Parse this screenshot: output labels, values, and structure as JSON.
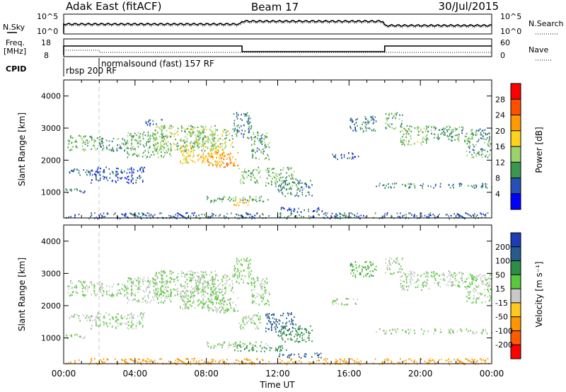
{
  "header": {
    "station": "Adak East (fitACF)",
    "beam": "Beam 17",
    "date": "30/Jul/2015"
  },
  "top_panels": {
    "nsky_label": "N.Sky",
    "nsearch_label": "N.Search",
    "count_ticks": [
      "10^5",
      "10^0"
    ],
    "freq_label_1": "Freq.",
    "freq_label_2": "[MHz]",
    "freq_ticks": [
      "18",
      "8"
    ],
    "nave_label": "Nave",
    "nave_ticks": [
      "60",
      "0"
    ],
    "cpid_label": "CPID",
    "cpid_entries": [
      {
        "time": "00:00",
        "name": "rbsp 200 RF"
      },
      {
        "time": "02:00",
        "name": "normalsound (fast) 157 RF"
      }
    ]
  },
  "colorbars": {
    "power": {
      "label": "Power [dB]",
      "ticks": [
        "28",
        "24",
        "20",
        "16",
        "12",
        "8",
        "4"
      ],
      "colors": [
        "#ff0000",
        "#ff5000",
        "#ff9a00",
        "#ffd21e",
        "#9bd26e",
        "#3c9650",
        "#2850b4",
        "#0000ff"
      ]
    },
    "velocity": {
      "label": "Velocity [m s⁻¹]",
      "ticks": [
        "200",
        "100",
        "50",
        "15",
        "-15",
        "-50",
        "-100",
        "-200"
      ],
      "colors": [
        "#1e3cb4",
        "#285a8c",
        "#2d8c46",
        "#5ac83c",
        "#c8c8c8",
        "#ffc81e",
        "#ff9600",
        "#ff5a00",
        "#ff0000"
      ]
    }
  },
  "x_axis": {
    "label": "Time UT",
    "ticks": [
      "00:00",
      "04:00",
      "08:00",
      "12:00",
      "16:00",
      "20:00",
      "00:00"
    ]
  },
  "chart_data": [
    {
      "type": "heatmap",
      "name": "power",
      "xlabel": "Time UT",
      "ylabel": "Slant Range [km]",
      "xlim": [
        0,
        24
      ],
      "ylim": [
        200,
        4500
      ],
      "yticks": [
        "1000",
        "2000",
        "3000",
        "4000"
      ],
      "colorbar": "Power [dB]",
      "crange": [
        0,
        32
      ],
      "regions": [
        {
          "t0": 0.2,
          "t1": 2.2,
          "r0": 2300,
          "r1": 2800,
          "level": 12
        },
        {
          "t0": 0.0,
          "t1": 1.2,
          "r0": 1000,
          "r1": 1150,
          "level": 8
        },
        {
          "t0": 0.3,
          "t1": 2.0,
          "r0": 1550,
          "r1": 1750,
          "level": 8
        },
        {
          "t0": 1.5,
          "t1": 4.5,
          "r0": 1300,
          "r1": 1800,
          "level": 6
        },
        {
          "t0": 2.0,
          "t1": 3.5,
          "r0": 2300,
          "r1": 2700,
          "level": 10
        },
        {
          "t0": 3.5,
          "t1": 6.0,
          "r0": 2100,
          "r1": 2900,
          "level": 12
        },
        {
          "t0": 5.0,
          "t1": 8.5,
          "r0": 2300,
          "r1": 3100,
          "level": 13
        },
        {
          "t0": 6.5,
          "t1": 9.0,
          "r0": 1900,
          "r1": 2500,
          "level": 18
        },
        {
          "t0": 8.0,
          "t1": 9.8,
          "r0": 1800,
          "r1": 2300,
          "level": 22
        },
        {
          "t0": 7.0,
          "t1": 9.5,
          "r0": 2400,
          "r1": 3000,
          "level": 14
        },
        {
          "t0": 4.5,
          "t1": 5.5,
          "r0": 3100,
          "r1": 3300,
          "level": 6
        },
        {
          "t0": 9.5,
          "t1": 10.5,
          "r0": 2700,
          "r1": 3500,
          "level": 8
        },
        {
          "t0": 10.5,
          "t1": 11.5,
          "r0": 2000,
          "r1": 2900,
          "level": 10
        },
        {
          "t0": 9.8,
          "t1": 11.0,
          "r0": 1300,
          "r1": 1800,
          "level": 12
        },
        {
          "t0": 11.3,
          "t1": 13.0,
          "r0": 1200,
          "r1": 1800,
          "level": 12
        },
        {
          "t0": 12.0,
          "t1": 14.0,
          "r0": 900,
          "r1": 1400,
          "level": 9
        },
        {
          "t0": 8.0,
          "t1": 11.5,
          "r0": 700,
          "r1": 900,
          "level": 11
        },
        {
          "t0": 9.5,
          "t1": 10.5,
          "r0": 600,
          "r1": 800,
          "level": 20
        },
        {
          "t0": 12.0,
          "t1": 14.5,
          "r0": 400,
          "r1": 550,
          "level": 6
        },
        {
          "t0": 16.0,
          "t1": 17.5,
          "r0": 2900,
          "r1": 3400,
          "level": 8
        },
        {
          "t0": 15.0,
          "t1": 16.5,
          "r0": 2050,
          "r1": 2250,
          "level": 7
        },
        {
          "t0": 18.0,
          "t1": 19.0,
          "r0": 3000,
          "r1": 3500,
          "level": 11
        },
        {
          "t0": 18.8,
          "t1": 20.5,
          "r0": 2500,
          "r1": 3100,
          "level": 13
        },
        {
          "t0": 20.5,
          "t1": 22.5,
          "r0": 2600,
          "r1": 3100,
          "level": 11
        },
        {
          "t0": 22.5,
          "t1": 24.0,
          "r0": 2100,
          "r1": 3000,
          "level": 10
        },
        {
          "t0": 17.5,
          "t1": 24.0,
          "r0": 1150,
          "r1": 1300,
          "level": 9
        },
        {
          "t0": 0.0,
          "t1": 24.0,
          "r0": 200,
          "r1": 380,
          "level": 7
        }
      ]
    },
    {
      "type": "heatmap",
      "name": "velocity",
      "xlabel": "Time UT",
      "ylabel": "Slant Range [km]",
      "xlim": [
        0,
        24
      ],
      "ylim": [
        200,
        4500
      ],
      "yticks": [
        "1000",
        "2000",
        "3000",
        "4000"
      ],
      "colorbar": "Velocity [m s⁻¹]",
      "crange": [
        -250,
        250
      ],
      "regions": [
        {
          "t0": 0.2,
          "t1": 2.2,
          "r0": 2300,
          "r1": 2800,
          "level": 0
        },
        {
          "t0": 0.0,
          "t1": 1.2,
          "r0": 1000,
          "r1": 1150,
          "level": 0
        },
        {
          "t0": 0.3,
          "t1": 2.0,
          "r0": 1550,
          "r1": 1750,
          "level": 0
        },
        {
          "t0": 1.5,
          "t1": 4.5,
          "r0": 1300,
          "r1": 1800,
          "level": 0
        },
        {
          "t0": 2.0,
          "t1": 3.5,
          "r0": 2300,
          "r1": 2700,
          "level": 0
        },
        {
          "t0": 3.5,
          "t1": 6.0,
          "r0": 2100,
          "r1": 2900,
          "level": 0
        },
        {
          "t0": 5.0,
          "t1": 8.5,
          "r0": 2300,
          "r1": 3100,
          "level": 0
        },
        {
          "t0": 6.5,
          "t1": 9.0,
          "r0": 1900,
          "r1": 2500,
          "level": 0
        },
        {
          "t0": 8.0,
          "t1": 9.8,
          "r0": 1800,
          "r1": 2300,
          "level": 0
        },
        {
          "t0": 7.0,
          "t1": 9.5,
          "r0": 2400,
          "r1": 3000,
          "level": 0
        },
        {
          "t0": 9.5,
          "t1": 10.5,
          "r0": 2700,
          "r1": 3500,
          "level": 5
        },
        {
          "t0": 10.5,
          "t1": 11.5,
          "r0": 2000,
          "r1": 2900,
          "level": 0
        },
        {
          "t0": 9.8,
          "t1": 11.0,
          "r0": 1300,
          "r1": 1800,
          "level": 0
        },
        {
          "t0": 11.3,
          "t1": 13.0,
          "r0": 1200,
          "r1": 1800,
          "level": 90
        },
        {
          "t0": 12.0,
          "t1": 14.0,
          "r0": 900,
          "r1": 1400,
          "level": 60
        },
        {
          "t0": 8.0,
          "t1": 11.5,
          "r0": 700,
          "r1": 900,
          "level": 0
        },
        {
          "t0": 9.5,
          "t1": 12.5,
          "r0": 600,
          "r1": 800,
          "level": 40
        },
        {
          "t0": 12.0,
          "t1": 14.5,
          "r0": 400,
          "r1": 550,
          "level": 100
        },
        {
          "t0": 16.0,
          "t1": 17.5,
          "r0": 2900,
          "r1": 3400,
          "level": 30
        },
        {
          "t0": 15.0,
          "t1": 16.5,
          "r0": 2050,
          "r1": 2250,
          "level": 0
        },
        {
          "t0": 18.0,
          "t1": 19.0,
          "r0": 3000,
          "r1": 3500,
          "level": 0
        },
        {
          "t0": 18.8,
          "t1": 20.5,
          "r0": 2500,
          "r1": 3100,
          "level": 0
        },
        {
          "t0": 20.5,
          "t1": 22.5,
          "r0": 2600,
          "r1": 3100,
          "level": 0
        },
        {
          "t0": 22.5,
          "t1": 24.0,
          "r0": 2100,
          "r1": 3000,
          "level": 0
        },
        {
          "t0": 17.5,
          "t1": 24.0,
          "r0": 1150,
          "r1": 1300,
          "level": 0
        },
        {
          "t0": 0.0,
          "t1": 24.0,
          "r0": 200,
          "r1": 380,
          "level": -40
        }
      ]
    }
  ]
}
